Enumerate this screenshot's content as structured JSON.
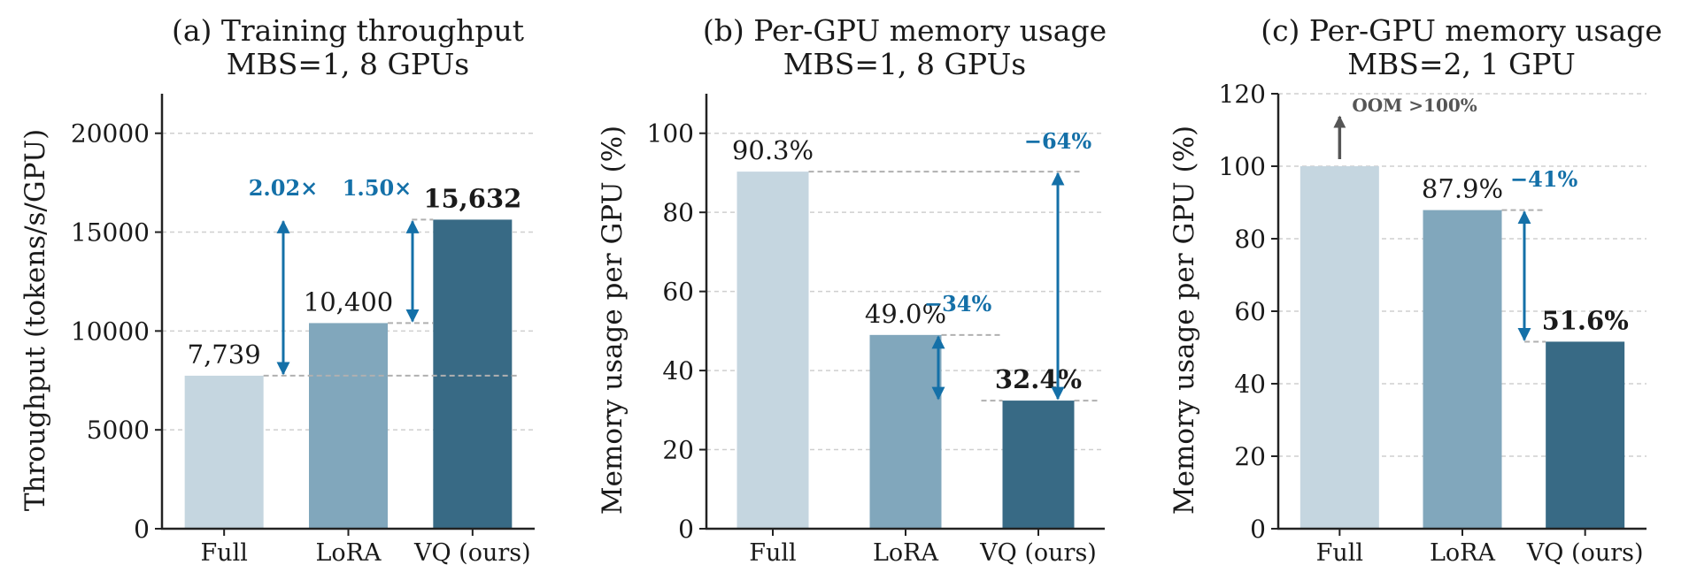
{
  "colors": {
    "full": "#c5d6e0",
    "lora": "#81a7bc",
    "vq": "#386a85",
    "accent": "#1470a8",
    "grid": "#cfcfcf",
    "connector": "#b0b0b0",
    "oom_arrow": "#555555"
  },
  "chart_data": [
    {
      "type": "bar",
      "title": [
        "(a) Training throughput",
        "MBS=1, 8 GPUs"
      ],
      "ylabel": "Throughput (tokens/s/GPU)",
      "categories": [
        "Full",
        "LoRA",
        "VQ (ours)"
      ],
      "values": [
        7739,
        10400,
        15632
      ],
      "value_labels": [
        "7,739",
        "10,400",
        "15,632"
      ],
      "bold_label_index": 2,
      "ylim": [
        0,
        22000
      ],
      "yticks": [
        0,
        5000,
        10000,
        15000,
        20000
      ],
      "ytick_labels": [
        "0",
        "5000",
        "10000",
        "15000",
        "20000"
      ],
      "grid": true,
      "annotations": [
        {
          "from_index": 0,
          "to_index": 2,
          "text": "2.02×"
        },
        {
          "from_index": 1,
          "to_index": 2,
          "text": "1.50×"
        }
      ]
    },
    {
      "type": "bar",
      "title": [
        "(b) Per-GPU memory usage",
        "MBS=1, 8 GPUs"
      ],
      "ylabel": "Memory usage per GPU (%)",
      "categories": [
        "Full",
        "LoRA",
        "VQ (ours)"
      ],
      "values": [
        90.3,
        49.0,
        32.4
      ],
      "value_labels": [
        "90.3%",
        "49.0%",
        "32.4%"
      ],
      "bold_label_index": 2,
      "ylim": [
        0,
        110
      ],
      "yticks": [
        0,
        20,
        40,
        60,
        80,
        100
      ],
      "ytick_labels": [
        "0",
        "20",
        "40",
        "60",
        "80",
        "100"
      ],
      "grid": true,
      "annotations": [
        {
          "from_index": 1,
          "to_index": 2,
          "text": "−34%"
        },
        {
          "from_index": 0,
          "to_index": 2,
          "text": "−64%"
        }
      ]
    },
    {
      "type": "bar",
      "title": [
        "(c) Per-GPU memory usage",
        "MBS=2, 1 GPU"
      ],
      "ylabel": "Memory usage per GPU (%)",
      "categories": [
        "Full",
        "LoRA",
        "VQ (ours)"
      ],
      "values": [
        100,
        87.9,
        51.6
      ],
      "value_labels": [
        "",
        "87.9%",
        "51.6%"
      ],
      "bold_label_index": 2,
      "ylim": [
        0,
        120
      ],
      "yticks": [
        0,
        20,
        40,
        60,
        80,
        100,
        120
      ],
      "ytick_labels": [
        "0",
        "20",
        "40",
        "60",
        "80",
        "100",
        "120"
      ],
      "grid": true,
      "oom_note": "OOM >100%",
      "annotations": [
        {
          "from_index": 1,
          "to_index": 2,
          "text": "−41%"
        }
      ]
    }
  ]
}
